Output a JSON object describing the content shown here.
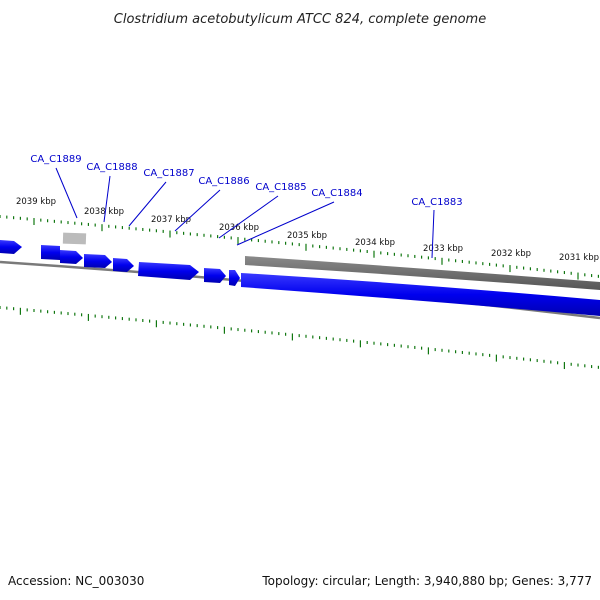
{
  "title": "Clostridium acetobutylicum ATCC 824, complete genome",
  "footer": {
    "accession": "Accession: NC_003030",
    "summary": "Topology: circular; Length: 3,940,880 bp; Genes: 3,777"
  },
  "ticks": [
    "2039 kbp",
    "2038 kbp",
    "2037 kbp",
    "2036 kbp",
    "2035 kbp",
    "2034 kbp",
    "2033 kbp",
    "2032 kbp",
    "2031 kbp"
  ],
  "genes": [
    {
      "name": "CA_C1889"
    },
    {
      "name": "CA_C1888"
    },
    {
      "name": "CA_C1887"
    },
    {
      "name": "CA_C1886"
    },
    {
      "name": "CA_C1885"
    },
    {
      "name": "CA_C1884"
    },
    {
      "name": "CA_C1883"
    }
  ],
  "colors": {
    "cds_forward": "#0000ee",
    "feature_gray": "#6e6e6e",
    "feature_light_gray": "#bbbbbb",
    "backbone": "#7a7a7a",
    "tick": "#117711",
    "label": "#0000cc"
  }
}
